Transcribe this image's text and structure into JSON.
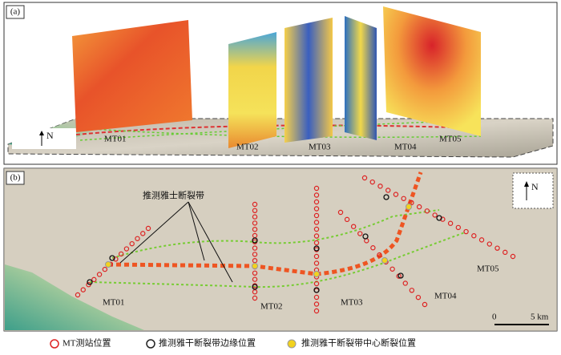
{
  "panel_a": {
    "label": "(a)",
    "north": "N",
    "profiles": [
      "MT01",
      "MT02",
      "MT03",
      "MT04",
      "MT05"
    ]
  },
  "panel_b": {
    "label": "(b)",
    "north": "N",
    "annotation": "推测雅士断裂带",
    "stations": [
      "MT01",
      "MT02",
      "MT03",
      "MT04",
      "MT05"
    ],
    "scale": {
      "start": "0",
      "end": "5 km"
    }
  },
  "legend": [
    "MT测站位置",
    "推测雅干断裂带边缘位置",
    "推测雅干断裂带中心断裂位置"
  ]
}
